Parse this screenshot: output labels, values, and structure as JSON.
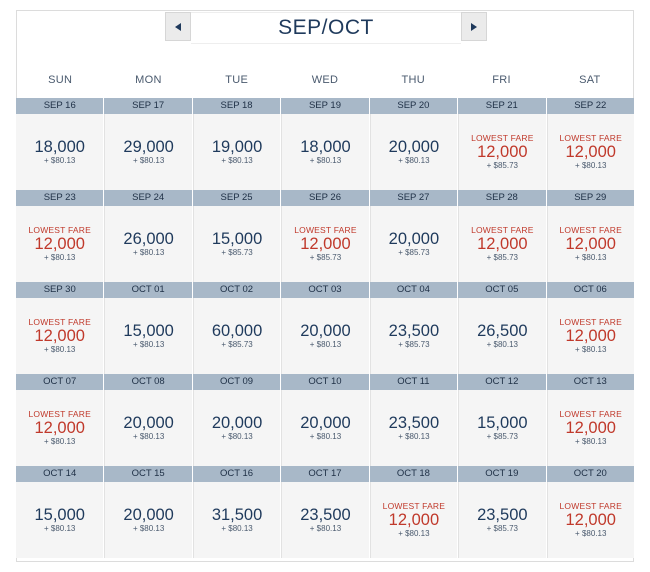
{
  "header": {
    "title": "SEP/OCT",
    "prev_icon": "chevron-left-icon",
    "next_icon": "chevron-right-icon"
  },
  "days_of_week": [
    "SUN",
    "MON",
    "TUE",
    "WED",
    "THU",
    "FRI",
    "SAT"
  ],
  "colors": {
    "date_bar": "#a8b8c8",
    "standard_fare": "#1f3a5c",
    "lowest_fare": "#c0392b",
    "cell_background": "#f5f5f5"
  },
  "weeks": [
    [
      {
        "date": "SEP 16",
        "miles": "18,000",
        "tax": "+ $80.13",
        "lowest": false
      },
      {
        "date": "SEP 17",
        "miles": "29,000",
        "tax": "+ $80.13",
        "lowest": false
      },
      {
        "date": "SEP 18",
        "miles": "19,000",
        "tax": "+ $80.13",
        "lowest": false
      },
      {
        "date": "SEP 19",
        "miles": "18,000",
        "tax": "+ $80.13",
        "lowest": false
      },
      {
        "date": "SEP 20",
        "miles": "20,000",
        "tax": "+ $80.13",
        "lowest": false
      },
      {
        "date": "SEP 21",
        "miles": "12,000",
        "tax": "+ $85.73",
        "lowest": true,
        "label": "LOWEST FARE"
      },
      {
        "date": "SEP 22",
        "miles": "12,000",
        "tax": "+ $80.13",
        "lowest": true,
        "label": "LOWEST FARE"
      }
    ],
    [
      {
        "date": "SEP 23",
        "miles": "12,000",
        "tax": "+ $80.13",
        "lowest": true,
        "label": "LOWEST FARE"
      },
      {
        "date": "SEP 24",
        "miles": "26,000",
        "tax": "+ $80.13",
        "lowest": false
      },
      {
        "date": "SEP 25",
        "miles": "15,000",
        "tax": "+ $85.73",
        "lowest": false
      },
      {
        "date": "SEP 26",
        "miles": "12,000",
        "tax": "+ $85.73",
        "lowest": true,
        "label": "LOWEST FARE"
      },
      {
        "date": "SEP 27",
        "miles": "20,000",
        "tax": "+ $85.73",
        "lowest": false
      },
      {
        "date": "SEP 28",
        "miles": "12,000",
        "tax": "+ $85.73",
        "lowest": true,
        "label": "LOWEST FARE"
      },
      {
        "date": "SEP 29",
        "miles": "12,000",
        "tax": "+ $80.13",
        "lowest": true,
        "label": "LOWEST FARE"
      }
    ],
    [
      {
        "date": "SEP 30",
        "miles": "12,000",
        "tax": "+ $80.13",
        "lowest": true,
        "label": "LOWEST FARE"
      },
      {
        "date": "OCT 01",
        "miles": "15,000",
        "tax": "+ $80.13",
        "lowest": false
      },
      {
        "date": "OCT 02",
        "miles": "60,000",
        "tax": "+ $85.73",
        "lowest": false
      },
      {
        "date": "OCT 03",
        "miles": "20,000",
        "tax": "+ $80.13",
        "lowest": false
      },
      {
        "date": "OCT 04",
        "miles": "23,500",
        "tax": "+ $85.73",
        "lowest": false
      },
      {
        "date": "OCT 05",
        "miles": "26,500",
        "tax": "+ $80.13",
        "lowest": false
      },
      {
        "date": "OCT 06",
        "miles": "12,000",
        "tax": "+ $80.13",
        "lowest": true,
        "label": "LOWEST FARE"
      }
    ],
    [
      {
        "date": "OCT 07",
        "miles": "12,000",
        "tax": "+ $80.13",
        "lowest": true,
        "label": "LOWEST FARE"
      },
      {
        "date": "OCT 08",
        "miles": "20,000",
        "tax": "+ $80.13",
        "lowest": false
      },
      {
        "date": "OCT 09",
        "miles": "20,000",
        "tax": "+ $80.13",
        "lowest": false
      },
      {
        "date": "OCT 10",
        "miles": "20,000",
        "tax": "+ $80.13",
        "lowest": false
      },
      {
        "date": "OCT 11",
        "miles": "23,500",
        "tax": "+ $80.13",
        "lowest": false
      },
      {
        "date": "OCT 12",
        "miles": "15,000",
        "tax": "+ $85.73",
        "lowest": false
      },
      {
        "date": "OCT 13",
        "miles": "12,000",
        "tax": "+ $80.13",
        "lowest": true,
        "label": "LOWEST FARE"
      }
    ],
    [
      {
        "date": "OCT 14",
        "miles": "15,000",
        "tax": "+ $80.13",
        "lowest": false
      },
      {
        "date": "OCT 15",
        "miles": "20,000",
        "tax": "+ $80.13",
        "lowest": false
      },
      {
        "date": "OCT 16",
        "miles": "31,500",
        "tax": "+ $80.13",
        "lowest": false
      },
      {
        "date": "OCT 17",
        "miles": "23,500",
        "tax": "+ $80.13",
        "lowest": false
      },
      {
        "date": "OCT 18",
        "miles": "12,000",
        "tax": "+ $80.13",
        "lowest": true,
        "label": "LOWEST FARE"
      },
      {
        "date": "OCT 19",
        "miles": "23,500",
        "tax": "+ $85.73",
        "lowest": false
      },
      {
        "date": "OCT 20",
        "miles": "12,000",
        "tax": "+ $80.13",
        "lowest": true,
        "label": "LOWEST FARE"
      }
    ]
  ]
}
